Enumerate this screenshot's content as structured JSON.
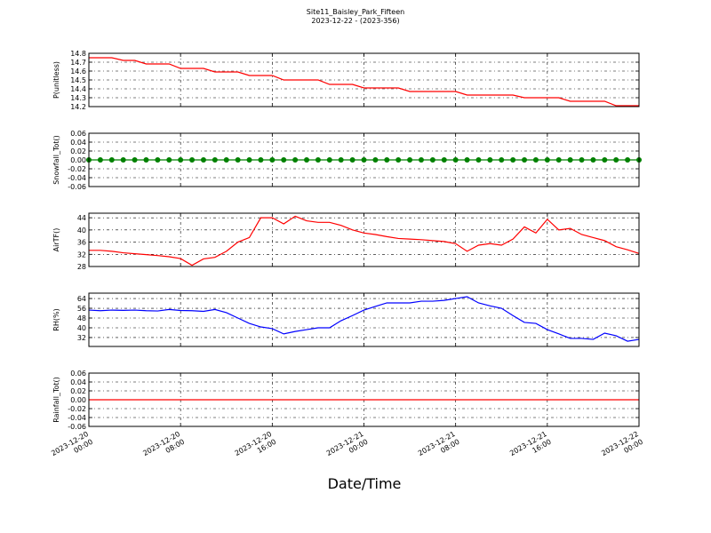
{
  "title": "Site11_Baisley_Park_Fifteen",
  "subtitle": "2023-12-22 - (2023-356)",
  "xlabel": "Date/Time",
  "chart_data": [
    {
      "type": "line",
      "ylabel": "P(unitless)",
      "color": "#ff0000",
      "grid": true,
      "xlim": [
        "2023-12-20 00:00",
        "2023-12-22 00:00"
      ],
      "xticks": [
        "2023-12-20 00:00",
        "2023-12-20 08:00",
        "2023-12-20 16:00",
        "2023-12-21 00:00",
        "2023-12-21 08:00",
        "2023-12-21 16:00",
        "2023-12-22 00:00"
      ],
      "ylim": [
        14.2,
        14.8
      ],
      "yticks": [
        14.2,
        14.3,
        14.4,
        14.5,
        14.6,
        14.7,
        14.8
      ],
      "x": [
        "2023-12-20 00:00",
        "2023-12-20 01:00",
        "2023-12-20 02:00",
        "2023-12-20 03:00",
        "2023-12-20 04:00",
        "2023-12-20 05:00",
        "2023-12-20 06:00",
        "2023-12-20 07:00",
        "2023-12-20 08:00",
        "2023-12-20 09:00",
        "2023-12-20 10:00",
        "2023-12-20 11:00",
        "2023-12-20 12:00",
        "2023-12-20 13:00",
        "2023-12-20 14:00",
        "2023-12-20 15:00",
        "2023-12-20 16:00",
        "2023-12-20 17:00",
        "2023-12-20 18:00",
        "2023-12-20 19:00",
        "2023-12-20 20:00",
        "2023-12-20 21:00",
        "2023-12-20 22:00",
        "2023-12-20 23:00",
        "2023-12-21 00:00",
        "2023-12-21 01:00",
        "2023-12-21 02:00",
        "2023-12-21 03:00",
        "2023-12-21 04:00",
        "2023-12-21 05:00",
        "2023-12-21 06:00",
        "2023-12-21 07:00",
        "2023-12-21 08:00",
        "2023-12-21 09:00",
        "2023-12-21 10:00",
        "2023-12-21 11:00",
        "2023-12-21 12:00",
        "2023-12-21 13:00",
        "2023-12-21 14:00",
        "2023-12-21 15:00",
        "2023-12-21 16:00",
        "2023-12-21 17:00",
        "2023-12-21 18:00",
        "2023-12-21 19:00",
        "2023-12-21 20:00",
        "2023-12-21 21:00",
        "2023-12-21 22:00",
        "2023-12-21 23:00",
        "2023-12-22 00:00"
      ],
      "values": [
        14.75,
        14.75,
        14.75,
        14.72,
        14.72,
        14.68,
        14.68,
        14.68,
        14.63,
        14.63,
        14.63,
        14.59,
        14.59,
        14.59,
        14.55,
        14.55,
        14.55,
        14.5,
        14.5,
        14.5,
        14.5,
        14.45,
        14.45,
        14.45,
        14.41,
        14.41,
        14.41,
        14.41,
        14.37,
        14.37,
        14.37,
        14.37,
        14.37,
        14.33,
        14.33,
        14.33,
        14.33,
        14.33,
        14.3,
        14.3,
        14.3,
        14.3,
        14.26,
        14.26,
        14.26,
        14.26,
        14.21,
        14.21,
        14.21
      ]
    },
    {
      "type": "scatter-line",
      "ylabel": "Snowfall_Tot()",
      "color": "#008000",
      "grid": true,
      "xlim": [
        "2023-12-20 00:00",
        "2023-12-22 00:00"
      ],
      "xticks": [
        "2023-12-20 00:00",
        "2023-12-20 08:00",
        "2023-12-20 16:00",
        "2023-12-21 00:00",
        "2023-12-21 08:00",
        "2023-12-21 16:00",
        "2023-12-22 00:00"
      ],
      "ylim": [
        -0.06,
        0.06
      ],
      "yticks": [
        -0.06,
        -0.04,
        -0.02,
        {
          "value": 0,
          "label": "0.00"
        },
        0.02,
        0.04,
        0.06
      ],
      "x": [
        "2023-12-20 00:00",
        "2023-12-20 01:00",
        "2023-12-20 02:00",
        "2023-12-20 03:00",
        "2023-12-20 04:00",
        "2023-12-20 05:00",
        "2023-12-20 06:00",
        "2023-12-20 07:00",
        "2023-12-20 08:00",
        "2023-12-20 09:00",
        "2023-12-20 10:00",
        "2023-12-20 11:00",
        "2023-12-20 12:00",
        "2023-12-20 13:00",
        "2023-12-20 14:00",
        "2023-12-20 15:00",
        "2023-12-20 16:00",
        "2023-12-20 17:00",
        "2023-12-20 18:00",
        "2023-12-20 19:00",
        "2023-12-20 20:00",
        "2023-12-20 21:00",
        "2023-12-20 22:00",
        "2023-12-20 23:00",
        "2023-12-21 00:00",
        "2023-12-21 01:00",
        "2023-12-21 02:00",
        "2023-12-21 03:00",
        "2023-12-21 04:00",
        "2023-12-21 05:00",
        "2023-12-21 06:00",
        "2023-12-21 07:00",
        "2023-12-21 08:00",
        "2023-12-21 09:00",
        "2023-12-21 10:00",
        "2023-12-21 11:00",
        "2023-12-21 12:00",
        "2023-12-21 13:00",
        "2023-12-21 14:00",
        "2023-12-21 15:00",
        "2023-12-21 16:00",
        "2023-12-21 17:00",
        "2023-12-21 18:00",
        "2023-12-21 19:00",
        "2023-12-21 20:00",
        "2023-12-21 21:00",
        "2023-12-21 22:00",
        "2023-12-21 23:00",
        "2023-12-22 00:00"
      ],
      "values": [
        0,
        0,
        0,
        0,
        0,
        0,
        0,
        0,
        0,
        0,
        0,
        0,
        0,
        0,
        0,
        0,
        0,
        0,
        0,
        0,
        0,
        0,
        0,
        0,
        0,
        0,
        0,
        0,
        0,
        0,
        0,
        0,
        0,
        0,
        0,
        0,
        0,
        0,
        0,
        0,
        0,
        0,
        0,
        0,
        0,
        0,
        0,
        0,
        0
      ]
    },
    {
      "type": "line",
      "ylabel": "AirTF()",
      "color": "#ff0000",
      "grid": true,
      "xlim": [
        "2023-12-20 00:00",
        "2023-12-22 00:00"
      ],
      "xticks": [
        "2023-12-20 00:00",
        "2023-12-20 08:00",
        "2023-12-20 16:00",
        "2023-12-21 00:00",
        "2023-12-21 08:00",
        "2023-12-21 16:00",
        "2023-12-22 00:00"
      ],
      "ylim": [
        28,
        45.5
      ],
      "yticks": [
        28,
        32,
        36,
        40,
        44
      ],
      "x": [
        "2023-12-20 00:00",
        "2023-12-20 01:00",
        "2023-12-20 02:00",
        "2023-12-20 03:00",
        "2023-12-20 04:00",
        "2023-12-20 05:00",
        "2023-12-20 06:00",
        "2023-12-20 07:00",
        "2023-12-20 08:00",
        "2023-12-20 09:00",
        "2023-12-20 10:00",
        "2023-12-20 11:00",
        "2023-12-20 12:00",
        "2023-12-20 13:00",
        "2023-12-20 14:00",
        "2023-12-20 15:00",
        "2023-12-20 16:00",
        "2023-12-20 17:00",
        "2023-12-20 18:00",
        "2023-12-20 19:00",
        "2023-12-20 20:00",
        "2023-12-20 21:00",
        "2023-12-20 22:00",
        "2023-12-20 23:00",
        "2023-12-21 00:00",
        "2023-12-21 01:00",
        "2023-12-21 02:00",
        "2023-12-21 03:00",
        "2023-12-21 04:00",
        "2023-12-21 05:00",
        "2023-12-21 06:00",
        "2023-12-21 07:00",
        "2023-12-21 08:00",
        "2023-12-21 09:00",
        "2023-12-21 10:00",
        "2023-12-21 11:00",
        "2023-12-21 12:00",
        "2023-12-21 13:00",
        "2023-12-21 14:00",
        "2023-12-21 15:00",
        "2023-12-21 16:00",
        "2023-12-21 17:00",
        "2023-12-21 18:00",
        "2023-12-21 19:00",
        "2023-12-21 20:00",
        "2023-12-21 21:00",
        "2023-12-21 22:00",
        "2023-12-21 23:00",
        "2023-12-22 00:00"
      ],
      "values": [
        33.3,
        33.3,
        33,
        32.5,
        32.2,
        31.9,
        31.6,
        31.2,
        30.6,
        28.4,
        30.5,
        31,
        33,
        36,
        37.5,
        44,
        44,
        42,
        44.5,
        43,
        42.5,
        42.5,
        41.5,
        40,
        39,
        38.5,
        37.8,
        37.2,
        37,
        36.8,
        36.5,
        36.2,
        35.5,
        33,
        35,
        35.5,
        35,
        37,
        41,
        39,
        43.5,
        40,
        40.5,
        38.5,
        37.5,
        36.5,
        34.5,
        33.5,
        32.3
      ]
    },
    {
      "type": "line",
      "ylabel": "RH(%)",
      "color": "#0000ff",
      "grid": true,
      "xlim": [
        "2023-12-20 00:00",
        "2023-12-22 00:00"
      ],
      "xticks": [
        "2023-12-20 00:00",
        "2023-12-20 08:00",
        "2023-12-20 16:00",
        "2023-12-21 00:00",
        "2023-12-21 08:00",
        "2023-12-21 16:00",
        "2023-12-22 00:00"
      ],
      "ylim": [
        24.7,
        68.4
      ],
      "yticks": [
        32,
        40,
        48,
        56,
        64
      ],
      "x": [
        "2023-12-20 00:00",
        "2023-12-20 01:00",
        "2023-12-20 02:00",
        "2023-12-20 03:00",
        "2023-12-20 04:00",
        "2023-12-20 05:00",
        "2023-12-20 06:00",
        "2023-12-20 07:00",
        "2023-12-20 08:00",
        "2023-12-20 09:00",
        "2023-12-20 10:00",
        "2023-12-20 11:00",
        "2023-12-20 12:00",
        "2023-12-20 13:00",
        "2023-12-20 14:00",
        "2023-12-20 15:00",
        "2023-12-20 16:00",
        "2023-12-20 17:00",
        "2023-12-20 18:00",
        "2023-12-20 19:00",
        "2023-12-20 20:00",
        "2023-12-20 21:00",
        "2023-12-20 22:00",
        "2023-12-20 23:00",
        "2023-12-21 00:00",
        "2023-12-21 01:00",
        "2023-12-21 02:00",
        "2023-12-21 03:00",
        "2023-12-21 04:00",
        "2023-12-21 05:00",
        "2023-12-21 06:00",
        "2023-12-21 07:00",
        "2023-12-21 08:00",
        "2023-12-21 09:00",
        "2023-12-21 10:00",
        "2023-12-21 11:00",
        "2023-12-21 12:00",
        "2023-12-21 13:00",
        "2023-12-21 14:00",
        "2023-12-21 15:00",
        "2023-12-21 16:00",
        "2023-12-21 17:00",
        "2023-12-21 18:00",
        "2023-12-21 19:00",
        "2023-12-21 20:00",
        "2023-12-21 21:00",
        "2023-12-21 22:00",
        "2023-12-21 23:00",
        "2023-12-22 00:00"
      ],
      "values": [
        54.5,
        54,
        54.5,
        54.3,
        54.5,
        54,
        53.8,
        55,
        54.2,
        54,
        53.5,
        55,
        52.4,
        48,
        43.6,
        40.7,
        39.3,
        35,
        37,
        38.5,
        40,
        40,
        45.8,
        50,
        54.5,
        57.5,
        60.4,
        60.4,
        60.4,
        61.8,
        61.8,
        62.5,
        64,
        65.5,
        60.4,
        58,
        56,
        50,
        44.4,
        43.6,
        38.5,
        35,
        31.3,
        31.3,
        30.5,
        35.6,
        33.5,
        29,
        30.5
      ]
    },
    {
      "type": "line",
      "ylabel": "Rainfall_Tot()",
      "color": "#ff0000",
      "grid": true,
      "xlim": [
        "2023-12-20 00:00",
        "2023-12-22 00:00"
      ],
      "xticks": [
        "2023-12-20 00:00",
        "2023-12-20 08:00",
        "2023-12-20 16:00",
        "2023-12-21 00:00",
        "2023-12-21 08:00",
        "2023-12-21 16:00",
        "2023-12-22 00:00"
      ],
      "ylim": [
        -0.06,
        0.06
      ],
      "yticks": [
        -0.06,
        -0.04,
        -0.02,
        {
          "value": 0,
          "label": "0.00"
        },
        0.02,
        0.04,
        0.06
      ],
      "x": [
        "2023-12-20 00:00",
        "2023-12-20 01:00",
        "2023-12-20 02:00",
        "2023-12-20 03:00",
        "2023-12-20 04:00",
        "2023-12-20 05:00",
        "2023-12-20 06:00",
        "2023-12-20 07:00",
        "2023-12-20 08:00",
        "2023-12-20 09:00",
        "2023-12-20 10:00",
        "2023-12-20 11:00",
        "2023-12-20 12:00",
        "2023-12-20 13:00",
        "2023-12-20 14:00",
        "2023-12-20 15:00",
        "2023-12-20 16:00",
        "2023-12-20 17:00",
        "2023-12-20 18:00",
        "2023-12-20 19:00",
        "2023-12-20 20:00",
        "2023-12-20 21:00",
        "2023-12-20 22:00",
        "2023-12-20 23:00",
        "2023-12-21 00:00",
        "2023-12-21 01:00",
        "2023-12-21 02:00",
        "2023-12-21 03:00",
        "2023-12-21 04:00",
        "2023-12-21 05:00",
        "2023-12-21 06:00",
        "2023-12-21 07:00",
        "2023-12-21 08:00",
        "2023-12-21 09:00",
        "2023-12-21 10:00",
        "2023-12-21 11:00",
        "2023-12-21 12:00",
        "2023-12-21 13:00",
        "2023-12-21 14:00",
        "2023-12-21 15:00",
        "2023-12-21 16:00",
        "2023-12-21 17:00",
        "2023-12-21 18:00",
        "2023-12-21 19:00",
        "2023-12-21 20:00",
        "2023-12-21 21:00",
        "2023-12-21 22:00",
        "2023-12-21 23:00",
        "2023-12-22 00:00"
      ],
      "values": [
        0,
        0,
        0,
        0,
        0,
        0,
        0,
        0,
        0,
        0,
        0,
        0,
        0,
        0,
        0,
        0,
        0,
        0,
        0,
        0,
        0,
        0,
        0,
        0,
        0,
        0,
        0,
        0,
        0,
        0,
        0,
        0,
        0,
        0,
        0,
        0,
        0,
        0,
        0,
        0,
        0,
        0,
        0,
        0,
        0,
        0,
        0,
        0,
        0
      ]
    }
  ]
}
